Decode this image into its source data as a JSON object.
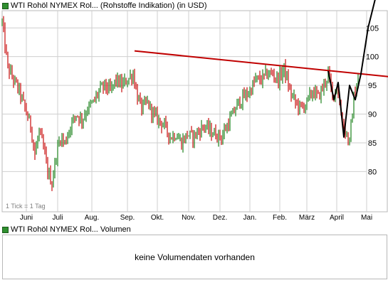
{
  "price_legend": {
    "label": "WTI Rohöl NYMEX Rol... (Rohstoffe Indikation) (in USD)",
    "swatch_color": "#2f8f2f"
  },
  "volume_legend": {
    "label": "WTI Rohöl NYMEX Rol... Volumen",
    "swatch_color": "#2f8f2f"
  },
  "volume_panel": {
    "message": "keine Volumendaten vorhanden"
  },
  "tick_note": "1 Tick = 1 Tag",
  "colors": {
    "up": "#2e8b2e",
    "down": "#cc1f1f",
    "trendline": "#c00000",
    "projection": "#000000",
    "grid": "#cfcfcf"
  },
  "chart_data": {
    "type": "bar",
    "ylim": [
      73,
      108
    ],
    "y_ticks": [
      80,
      85,
      90,
      95,
      100,
      105
    ],
    "x_tick_labels": [
      "Juni",
      "Juli",
      "Aug.",
      "Sep.",
      "Okt.",
      "Nov.",
      "Dez.",
      "Jan.",
      "Feb.",
      "März",
      "April",
      "Mai"
    ],
    "x_tick_days": [
      17,
      39,
      63,
      88,
      109,
      131,
      153,
      174,
      195,
      214,
      235,
      256
    ],
    "grid": true,
    "price_path": [
      [
        0,
        106
      ],
      [
        2,
        102
      ],
      [
        4,
        98
      ],
      [
        8,
        96
      ],
      [
        12,
        94
      ],
      [
        16,
        91
      ],
      [
        20,
        88
      ],
      [
        23,
        83
      ],
      [
        26,
        87
      ],
      [
        29,
        84
      ],
      [
        32,
        80
      ],
      [
        35,
        78
      ],
      [
        38,
        83
      ],
      [
        41,
        86
      ],
      [
        44,
        85
      ],
      [
        48,
        88
      ],
      [
        52,
        90
      ],
      [
        56,
        89
      ],
      [
        60,
        91
      ],
      [
        64,
        92
      ],
      [
        68,
        94
      ],
      [
        72,
        95
      ],
      [
        76,
        94
      ],
      [
        80,
        96
      ],
      [
        84,
        95
      ],
      [
        88,
        96
      ],
      [
        92,
        97
      ],
      [
        95,
        93
      ],
      [
        98,
        91
      ],
      [
        102,
        92
      ],
      [
        106,
        90
      ],
      [
        110,
        89
      ],
      [
        114,
        88
      ],
      [
        118,
        86
      ],
      [
        122,
        86.5
      ],
      [
        126,
        85
      ],
      [
        130,
        86.5
      ],
      [
        134,
        86
      ],
      [
        138,
        87
      ],
      [
        142,
        88
      ],
      [
        146,
        87
      ],
      [
        150,
        86.5
      ],
      [
        154,
        86
      ],
      [
        158,
        88
      ],
      [
        162,
        90
      ],
      [
        166,
        92
      ],
      [
        170,
        93
      ],
      [
        174,
        94
      ],
      [
        178,
        96
      ],
      [
        182,
        96
      ],
      [
        186,
        97
      ],
      [
        190,
        97
      ],
      [
        194,
        96
      ],
      [
        198,
        98
      ],
      [
        202,
        94
      ],
      [
        206,
        92
      ],
      [
        210,
        91
      ],
      [
        214,
        92
      ],
      [
        218,
        94
      ],
      [
        222,
        93
      ],
      [
        226,
        95
      ],
      [
        229,
        97
      ],
      [
        232,
        93
      ],
      [
        235,
        95
      ],
      [
        238,
        90
      ],
      [
        241,
        87
      ],
      [
        244,
        85
      ],
      [
        247,
        93
      ],
      [
        250,
        96
      ]
    ],
    "trendline": [
      [
        93,
        101
      ],
      [
        272,
        96.5
      ]
    ],
    "projection": [
      [
        229,
        97.5
      ],
      [
        233,
        92.5
      ],
      [
        236,
        95.5
      ],
      [
        240,
        86
      ],
      [
        244,
        95
      ],
      [
        248,
        92.5
      ],
      [
        252,
        97
      ],
      [
        257,
        105
      ],
      [
        262,
        110
      ]
    ]
  }
}
